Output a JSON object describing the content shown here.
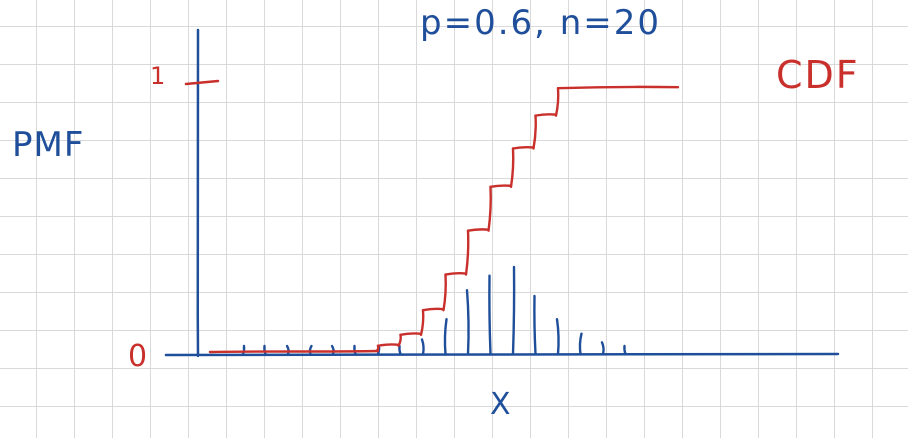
{
  "title": "p=0.6, n=20",
  "labels": {
    "pmf": "PMF",
    "cdf": "CDF",
    "x_axis": "X",
    "y_one": "1",
    "y_zero": "0"
  },
  "colors": {
    "pmf": "#1f4e9a",
    "cdf": "#c9302c",
    "grid": "#d9d9d9"
  },
  "chart_data": {
    "type": "line",
    "title": "p=0.6, n=20",
    "xlabel": "X",
    "ylabel": "PMF",
    "xlim": [
      0,
      20
    ],
    "ylim": [
      0,
      1
    ],
    "y_ticks": [
      "0",
      "1"
    ],
    "grid": true,
    "series": [
      {
        "name": "PMF",
        "kind": "stem",
        "x": [
          2,
          3,
          4,
          5,
          6,
          7,
          8,
          9,
          10,
          11,
          12,
          13,
          14,
          15,
          16,
          17,
          18,
          19
        ],
        "values": [
          0.005,
          0.005,
          0.005,
          0.005,
          0.01,
          0.01,
          0.01,
          0.02,
          0.05,
          0.12,
          0.22,
          0.27,
          0.3,
          0.2,
          0.12,
          0.07,
          0.04,
          0.02
        ]
      },
      {
        "name": "CDF",
        "kind": "step",
        "x": [
          0,
          8,
          9,
          10,
          11,
          12,
          13,
          14,
          15,
          16,
          20
        ],
        "values": [
          0,
          0.03,
          0.07,
          0.16,
          0.29,
          0.45,
          0.61,
          0.75,
          0.87,
          0.97,
          1.0
        ]
      }
    ]
  }
}
